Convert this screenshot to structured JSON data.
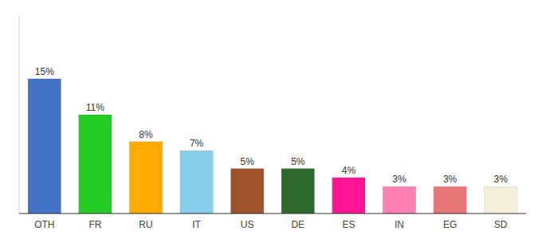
{
  "chart_data": {
    "type": "bar",
    "categories": [
      "OTH",
      "FR",
      "RU",
      "IT",
      "US",
      "DE",
      "ES",
      "IN",
      "EG",
      "SD"
    ],
    "values": [
      15,
      11,
      8,
      7,
      5,
      5,
      4,
      3,
      3,
      3
    ],
    "value_labels": [
      "15%",
      "11%",
      "8%",
      "7%",
      "5%",
      "5%",
      "4%",
      "3%",
      "3%",
      "3%"
    ],
    "colors": [
      "#4472c4",
      "#22cc22",
      "#ffaa00",
      "#87ceeb",
      "#a0522d",
      "#2d6a2d",
      "#ff1493",
      "#ff80b3",
      "#e87878",
      "#f5f0dc"
    ],
    "ylim": [
      0,
      22
    ],
    "data_labels": true,
    "tick_labels": "x",
    "grid": false
  }
}
